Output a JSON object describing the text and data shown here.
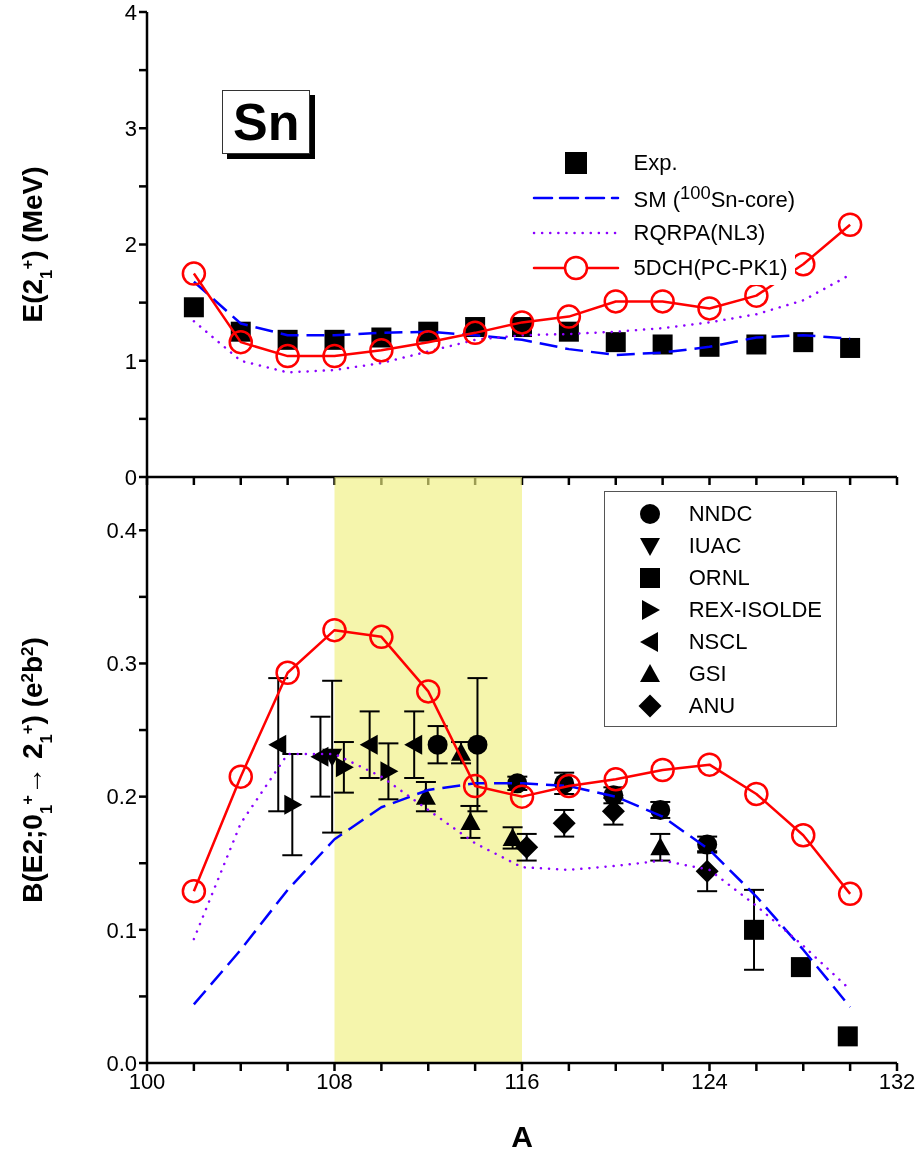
{
  "chart_data": [
    {
      "type": "line",
      "ylabel": "E(2$_{1}$$^{+}$) (MeV)",
      "annotations": [
        "Sn"
      ],
      "xlim": [
        100,
        132
      ],
      "xticks": [
        100,
        {
          "value": 102,
          "label": null
        },
        {
          "value": 104,
          "label": null
        },
        {
          "value": 106,
          "label": null
        },
        108,
        {
          "value": 110,
          "label": null
        },
        {
          "value": 112,
          "label": null
        },
        {
          "value": 114,
          "label": null
        },
        116,
        {
          "value": 118,
          "label": null
        },
        {
          "value": 120,
          "label": null
        },
        {
          "value": 122,
          "label": null
        },
        124,
        {
          "value": 126,
          "label": null
        },
        {
          "value": 128,
          "label": null
        },
        {
          "value": 130,
          "label": null
        },
        132
      ],
      "ylim": [
        0,
        4
      ],
      "yticks": [
        0,
        {
          "value": 0.5,
          "label": null
        },
        1,
        {
          "value": 1.5,
          "label": null
        },
        2,
        {
          "value": 2.5,
          "label": null
        },
        3,
        {
          "value": 3.5,
          "label": null
        },
        4
      ],
      "tick_labels": "y",
      "legend": "top right",
      "series": [
        {
          "name": "Exp.",
          "type": "scatter",
          "marker": "square",
          "color": "#000000",
          "x": [
            102,
            104,
            106,
            108,
            110,
            112,
            114,
            116,
            118,
            120,
            122,
            124,
            126,
            128,
            130
          ],
          "values": [
            1.46,
            1.25,
            1.18,
            1.18,
            1.2,
            1.25,
            1.29,
            1.29,
            1.25,
            1.16,
            1.14,
            1.12,
            1.14,
            1.16,
            1.11
          ]
        },
        {
          "name": "SM ($^{100}$Sn-core)",
          "type": "line",
          "marker": "none",
          "line_style": "dashed",
          "color": "#0000ff",
          "x": [
            102,
            104,
            106,
            108,
            110,
            112,
            114,
            116,
            118,
            120,
            122,
            124,
            126,
            128,
            130
          ],
          "values": [
            1.68,
            1.32,
            1.22,
            1.22,
            1.24,
            1.25,
            1.22,
            1.18,
            1.1,
            1.05,
            1.07,
            1.12,
            1.2,
            1.22,
            1.19
          ]
        },
        {
          "name": "RQRPA(NL3)",
          "type": "line",
          "marker": "none",
          "line_style": "dotted",
          "color": "#8b00ff",
          "x": [
            102,
            104,
            106,
            108,
            110,
            112,
            114,
            116,
            118,
            120,
            122,
            124,
            126,
            128,
            130
          ],
          "values": [
            1.34,
            1.0,
            0.9,
            0.92,
            0.98,
            1.08,
            1.18,
            1.22,
            1.23,
            1.25,
            1.28,
            1.33,
            1.4,
            1.52,
            1.74
          ]
        },
        {
          "name": "5DCH(PC-PK1)",
          "type": "line",
          "marker": "circle",
          "line_style": "solid",
          "color": "#ff0000",
          "x": [
            102,
            104,
            106,
            108,
            110,
            112,
            114,
            116,
            118,
            120,
            122,
            124,
            126,
            128,
            130
          ],
          "values": [
            1.75,
            1.16,
            1.04,
            1.04,
            1.09,
            1.16,
            1.24,
            1.33,
            1.38,
            1.51,
            1.51,
            1.45,
            1.56,
            1.83,
            2.17
          ]
        }
      ]
    },
    {
      "type": "line",
      "xlabel": "A",
      "ylabel": "B(E2;0$_{1}$$^{+}$→ 2$_{1}$$^{+}$) (e$^{2}$b$^{2}$)",
      "xlim": [
        100,
        132
      ],
      "xticks": [
        100,
        {
          "value": 102,
          "label": null
        },
        {
          "value": 104,
          "label": null
        },
        {
          "value": 106,
          "label": null
        },
        108,
        {
          "value": 110,
          "label": null
        },
        {
          "value": 112,
          "label": null
        },
        {
          "value": 114,
          "label": null
        },
        116,
        {
          "value": 118,
          "label": null
        },
        {
          "value": 120,
          "label": null
        },
        {
          "value": 122,
          "label": null
        },
        124,
        {
          "value": 126,
          "label": null
        },
        {
          "value": 128,
          "label": null
        },
        {
          "value": 130,
          "label": null
        },
        132
      ],
      "ylim": [
        0,
        0.44
      ],
      "yticks": [
        {
          "value": 0,
          "label": "0.0"
        },
        {
          "value": 0.05,
          "label": null
        },
        0.1,
        {
          "value": 0.15,
          "label": null
        },
        0.2,
        {
          "value": 0.25,
          "label": null
        },
        0.3,
        {
          "value": 0.35,
          "label": null
        },
        0.4
      ],
      "legend": "top right",
      "bands": [
        {
          "axis": "x",
          "from": 108,
          "to": 116,
          "color": "#f0f080"
        }
      ],
      "series": [
        {
          "type": "line",
          "marker": "none",
          "line_style": "dashed",
          "color": "#0000ff",
          "x": [
            102,
            104,
            106,
            108,
            110,
            112,
            114,
            116,
            118,
            120,
            122,
            124,
            126,
            128,
            130
          ],
          "values": [
            0.044,
            0.085,
            0.13,
            0.168,
            0.192,
            0.205,
            0.21,
            0.21,
            0.208,
            0.2,
            0.185,
            0.16,
            0.125,
            0.085,
            0.042
          ]
        },
        {
          "type": "line",
          "marker": "none",
          "line_style": "dotted",
          "color": "#8b00ff",
          "x": [
            102,
            104,
            106,
            108,
            110,
            112,
            114,
            116,
            118,
            120,
            122,
            124,
            126,
            128,
            130
          ],
          "values": [
            0.093,
            0.18,
            0.232,
            0.232,
            0.215,
            0.19,
            0.165,
            0.147,
            0.145,
            0.148,
            0.152,
            0.145,
            0.118,
            0.088,
            0.055
          ]
        },
        {
          "type": "line",
          "marker": "circle",
          "line_style": "solid",
          "color": "#ff0000",
          "x": [
            102,
            104,
            106,
            108,
            110,
            112,
            114,
            116,
            118,
            120,
            122,
            124,
            126,
            128,
            130
          ],
          "values": [
            0.129,
            0.215,
            0.293,
            0.325,
            0.32,
            0.279,
            0.208,
            0.2,
            0.208,
            0.213,
            0.22,
            0.224,
            0.202,
            0.171,
            0.127
          ]
        },
        {
          "name": "NNDC",
          "type": "scatter",
          "marker": "circle",
          "color": "#000000",
          "x": [
            112.4,
            114.1,
            115.8,
            117.8,
            119.9,
            121.9,
            123.9
          ],
          "values": [
            0.239,
            0.239,
            0.21,
            0.21,
            0.201,
            0.19,
            0.164
          ],
          "errors": [
            0.014,
            0.05,
            0.005,
            0.008,
            0.006,
            0.006,
            0.006
          ]
        },
        {
          "name": "IUAC",
          "type": "scatter",
          "marker": "triangle-down",
          "color": "#000000",
          "x": [
            107.9
          ],
          "values": [
            0.23
          ],
          "errors": [
            0.057
          ]
        },
        {
          "name": "ORNL",
          "type": "scatter",
          "marker": "square",
          "color": "#000000",
          "x": [
            125.9,
            127.9,
            129.9
          ],
          "values": [
            0.1,
            0.072,
            0.02
          ],
          "errors": [
            0.03,
            null,
            null
          ]
        },
        {
          "name": "REX-ISOLDE",
          "type": "scatter",
          "marker": "triangle-right",
          "color": "#000000",
          "x": [
            106.2,
            108.4,
            110.3
          ],
          "values": [
            0.194,
            0.222,
            0.219
          ],
          "errors": [
            0.038,
            0.019,
            0.021
          ]
        },
        {
          "name": "NSCL",
          "type": "scatter",
          "marker": "triangle-left",
          "color": "#000000",
          "x": [
            105.6,
            107.4,
            109.5,
            111.4
          ],
          "values": [
            0.239,
            0.23,
            0.239,
            0.239
          ],
          "errors": [
            0.05,
            0.03,
            0.025,
            0.025
          ]
        },
        {
          "name": "GSI",
          "type": "scatter",
          "marker": "triangle",
          "color": "#000000",
          "x": [
            111.9,
            113.4,
            113.8,
            115.6,
            121.9
          ],
          "values": [
            0.2,
            0.233,
            0.181,
            0.169,
            0.162
          ],
          "errors": [
            0.011,
            0.008,
            0.012,
            0.008,
            0.01
          ]
        },
        {
          "name": "ANU",
          "type": "scatter",
          "marker": "diamond",
          "color": "#000000",
          "x": [
            116.2,
            117.8,
            119.9,
            123.9
          ],
          "values": [
            0.162,
            0.18,
            0.189,
            0.144
          ],
          "errors": [
            0.01,
            0.01,
            0.01,
            0.015
          ]
        }
      ]
    }
  ]
}
